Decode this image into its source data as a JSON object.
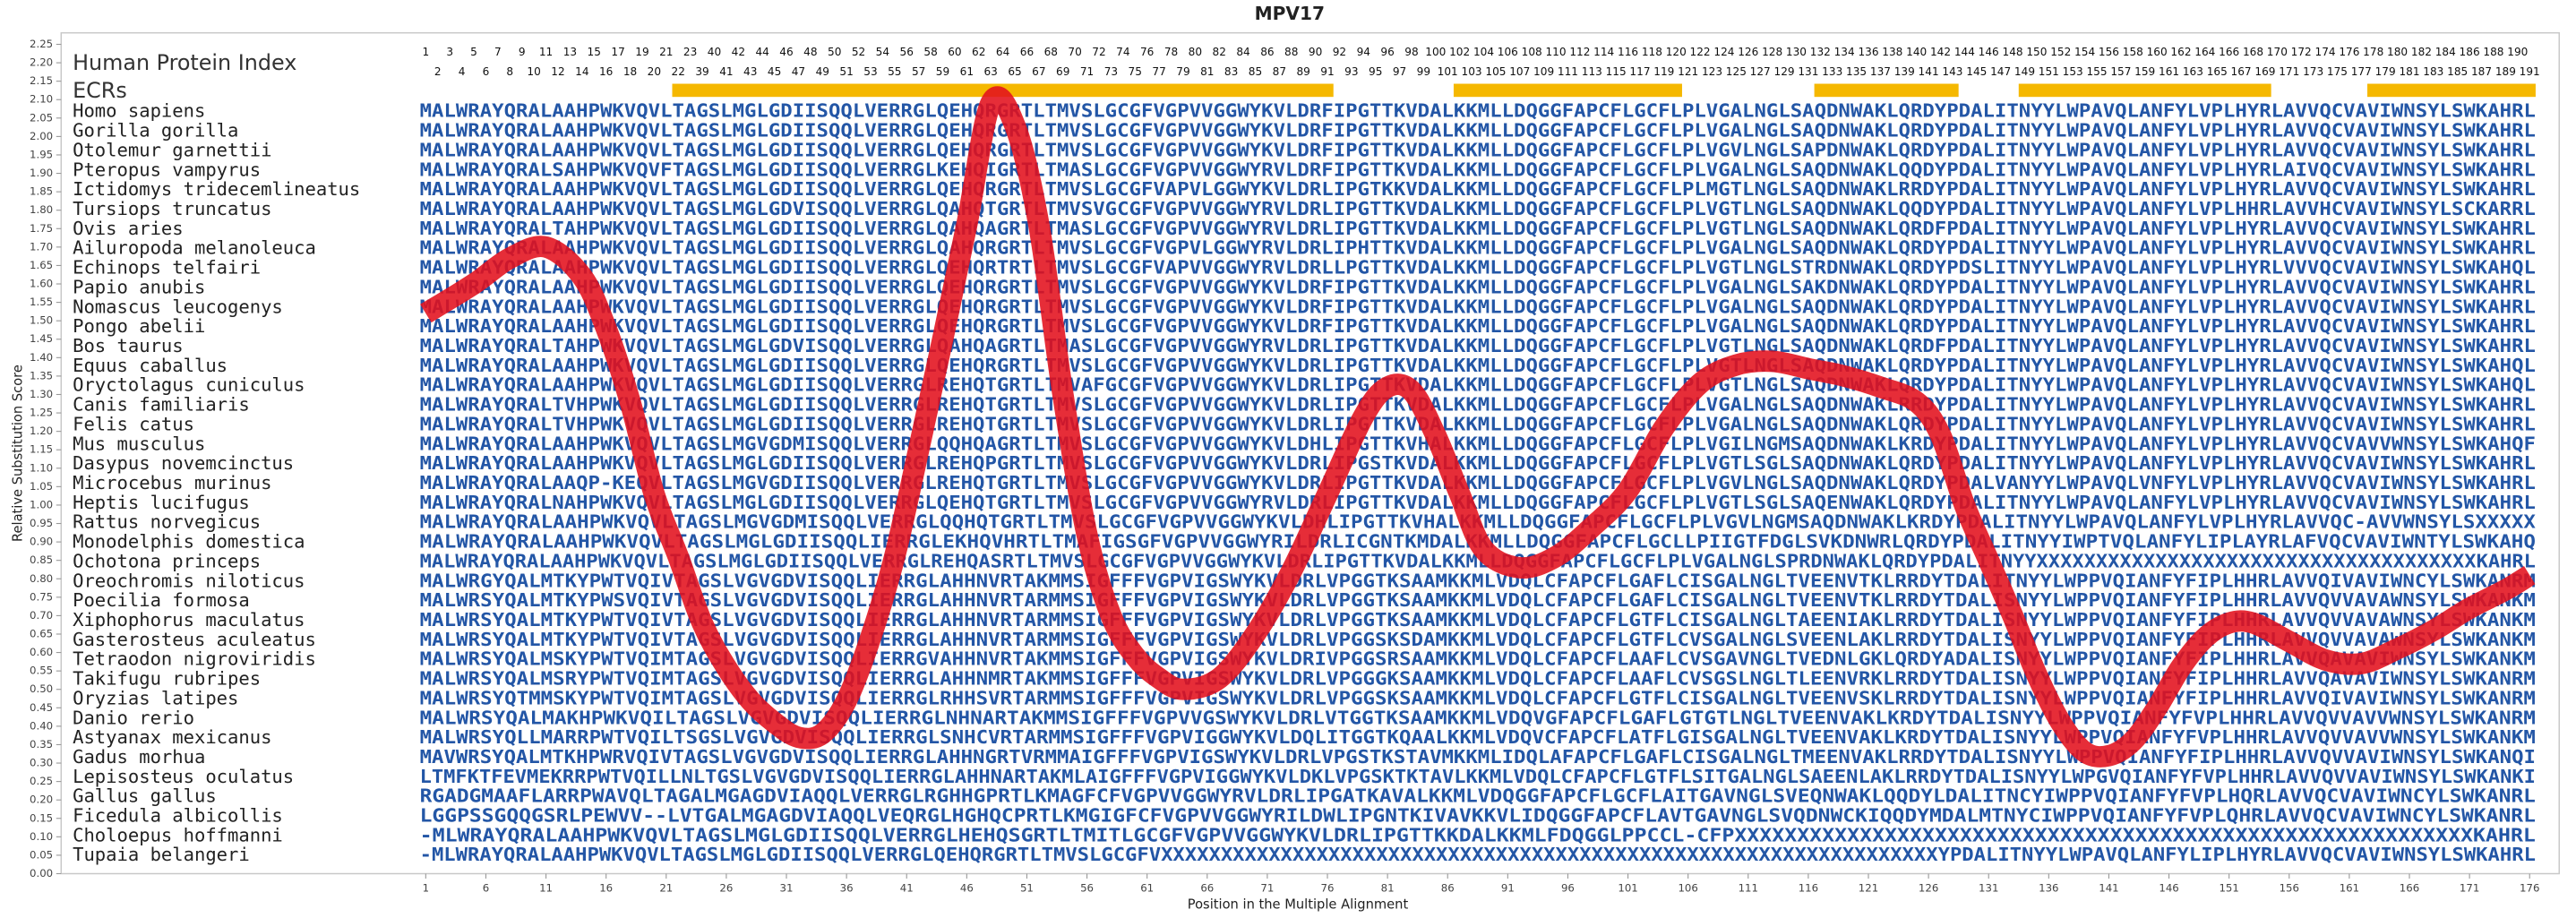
{
  "chart_data": {
    "type": "line",
    "title": "MPV17",
    "y_label": "Relative Substitution Score",
    "x_label": "Position in the Multiple Alignment",
    "index_label": "Human Protein Index",
    "ecr_label": "ECRs",
    "color": "#e3101c",
    "ecr_color": "#f5b800",
    "xlim": [
      1,
      176
    ],
    "ylim": [
      0,
      2.25
    ],
    "xticks": [
      1,
      6,
      11,
      16,
      21,
      26,
      31,
      36,
      41,
      46,
      51,
      56,
      61,
      66,
      71,
      76,
      81,
      86,
      91,
      96,
      101,
      106,
      111,
      116,
      121,
      126,
      131,
      136,
      141,
      146,
      151,
      156,
      161,
      166,
      171,
      176
    ],
    "yticks": [
      {
        "value": 0,
        "label": "0.00"
      },
      {
        "value": 0.05,
        "label": "0.05"
      },
      {
        "value": 0.1,
        "label": "0.10"
      },
      {
        "value": 0.15,
        "label": "0.15"
      },
      {
        "value": 0.2,
        "label": "0.20"
      },
      {
        "value": 0.25,
        "label": "0.25"
      },
      {
        "value": 0.3,
        "label": "0.30"
      },
      {
        "value": 0.35,
        "label": "0.35"
      },
      {
        "value": 0.4,
        "label": "0.40"
      },
      {
        "value": 0.45,
        "label": "0.45"
      },
      {
        "value": 0.5,
        "label": "0.50"
      },
      {
        "value": 0.55,
        "label": "0.55"
      },
      {
        "value": 0.6,
        "label": "0.60"
      },
      {
        "value": 0.65,
        "label": "0.65"
      },
      {
        "value": 0.7,
        "label": "0.70"
      },
      {
        "value": 0.75,
        "label": "0.75"
      },
      {
        "value": 0.8,
        "label": "0.80"
      },
      {
        "value": 0.85,
        "label": "0.85"
      },
      {
        "value": 0.9,
        "label": "0.90"
      },
      {
        "value": 0.95,
        "label": "0.95"
      },
      {
        "value": 1,
        "label": "1.00"
      },
      {
        "value": 1.05,
        "label": "1.05"
      },
      {
        "value": 1.1,
        "label": "1.10"
      },
      {
        "value": 1.15,
        "label": "1.15"
      },
      {
        "value": 1.2,
        "label": "1.20"
      },
      {
        "value": 1.25,
        "label": "1.25"
      },
      {
        "value": 1.3,
        "label": "1.30"
      },
      {
        "value": 1.35,
        "label": "1.35"
      },
      {
        "value": 1.4,
        "label": "1.40"
      },
      {
        "value": 1.45,
        "label": "1.45"
      },
      {
        "value": 1.5,
        "label": "1.50"
      },
      {
        "value": 1.55,
        "label": "1.55"
      },
      {
        "value": 1.6,
        "label": "1.60"
      },
      {
        "value": 1.65,
        "label": "1.65"
      },
      {
        "value": 1.7,
        "label": "1.70"
      },
      {
        "value": 1.75,
        "label": "1.75"
      },
      {
        "value": 1.8,
        "label": "1.80"
      },
      {
        "value": 1.85,
        "label": "1.85"
      },
      {
        "value": 1.9,
        "label": "1.90"
      },
      {
        "value": 1.95,
        "label": "1.95"
      },
      {
        "value": 2,
        "label": "2.00"
      },
      {
        "value": 2.05,
        "label": "2.05"
      },
      {
        "value": 2.1,
        "label": "2.10"
      },
      {
        "value": 2.15,
        "label": "2.15"
      },
      {
        "value": 2.2,
        "label": "2.20"
      },
      {
        "value": 2.25,
        "label": "2.25"
      }
    ],
    "x": [
      1,
      5,
      8,
      11,
      14,
      16,
      18,
      20,
      22,
      24,
      26,
      28,
      30,
      32,
      34,
      36,
      38,
      40,
      42,
      44,
      46,
      48,
      50,
      52,
      54,
      56,
      58,
      60,
      62,
      64,
      67,
      70,
      73,
      76,
      79,
      81,
      83,
      85,
      87,
      89,
      92,
      95,
      98,
      101,
      104,
      107,
      110,
      113,
      116,
      119,
      122,
      125,
      127,
      129,
      131,
      133,
      135,
      137,
      139,
      141,
      143,
      145,
      147,
      149,
      151,
      153,
      156,
      159,
      162,
      165,
      168,
      171,
      174,
      176
    ],
    "values": [
      1.52,
      1.6,
      1.67,
      1.7,
      1.62,
      1.48,
      1.28,
      1.03,
      0.86,
      0.68,
      0.56,
      0.47,
      0.41,
      0.37,
      0.38,
      0.47,
      0.64,
      0.86,
      1.15,
      1.45,
      1.76,
      2.09,
      2.03,
      1.76,
      1.3,
      0.92,
      0.7,
      0.59,
      0.53,
      0.5,
      0.53,
      0.65,
      0.82,
      1.03,
      1.24,
      1.32,
      1.31,
      1.19,
      1.03,
      0.88,
      0.83,
      0.86,
      0.94,
      1.04,
      1.21,
      1.33,
      1.38,
      1.39,
      1.37,
      1.35,
      1.32,
      1.28,
      1.19,
      1.0,
      0.85,
      0.7,
      0.54,
      0.41,
      0.33,
      0.32,
      0.36,
      0.45,
      0.56,
      0.64,
      0.68,
      0.68,
      0.63,
      0.58,
      0.57,
      0.61,
      0.66,
      0.72,
      0.77,
      0.81
    ],
    "ecrs": [
      [
        22,
        76
      ],
      [
        87,
        105
      ],
      [
        117,
        128
      ],
      [
        134,
        154
      ],
      [
        163,
        176
      ]
    ],
    "human_protein_index": [
      1,
      2,
      3,
      4,
      5,
      6,
      7,
      8,
      9,
      10,
      11,
      12,
      13,
      14,
      15,
      16,
      17,
      18,
      19,
      20,
      21,
      22,
      23,
      39,
      40,
      41,
      42,
      43,
      44,
      45,
      46,
      47,
      48,
      49,
      50,
      51,
      52,
      53,
      54,
      55,
      56,
      57,
      58,
      59,
      60,
      61,
      62,
      63,
      64,
      65,
      66,
      67,
      68,
      69,
      70,
      71,
      72,
      73,
      74,
      75,
      76,
      77,
      78,
      79,
      80,
      81,
      82,
      83,
      84,
      85,
      86,
      87,
      88,
      89,
      90,
      91,
      92,
      93,
      94,
      95,
      96,
      97,
      98,
      99,
      100,
      101,
      102,
      103,
      104,
      105,
      106,
      107,
      108,
      109,
      110,
      111,
      112,
      113,
      114,
      115,
      116,
      117,
      118,
      119,
      120,
      121,
      122,
      123,
      124,
      125,
      126,
      127,
      128,
      129,
      130,
      131,
      132,
      133,
      134,
      135,
      136,
      137,
      138,
      139,
      140,
      141,
      142,
      143,
      144,
      145,
      146,
      147,
      148,
      149,
      150,
      151,
      152,
      153,
      154,
      155,
      156,
      157,
      158,
      159,
      160,
      161,
      162,
      163,
      164,
      165,
      166,
      167,
      168,
      169,
      170,
      171,
      172,
      173,
      174,
      175,
      176,
      177,
      178,
      179,
      180,
      181,
      182,
      183,
      184,
      185,
      186,
      187,
      188,
      189,
      190,
      191
    ],
    "rows": [
      {
        "name": "Homo sapiens",
        "sequence": "MALWRAYQRALAAHPWKVQVLTAGSLMGLGDIISQQLVERRGLQEHQRGRTLTMVSLGCGFVGPVVGGWYKVLDRFIPGTTKVDALKKMLLDQGGFAPCFLGCFLPLVGALNGLSAQDNWAKLQRDYPDALITNYYLWPAVQLANFYLVPLHYRLAVVQCVAVIWNSYLSWKAHRL"
      },
      {
        "name": "Gorilla gorilla",
        "sequence": "MALWRAYQRALAAHPWKVQVLTAGSLMGLGDIISQQLVERRGLQEHQRGRTLTMVSLGCGFVGPVVGGWYKVLDRFIPGTTKVDALKKMLLDQGGFAPCFLGCFLPLVGALNGLSAQDNWAKLQRDYPDALITNYYLWPAVQLANFYLVPLHYRLAVVQCVAVIWNSYLSWKAHRL"
      },
      {
        "name": "Otolemur garnettii",
        "sequence": "MALWRAYQRALAAHPWKVQVLTAGSLMGLGDIISQQLVERRGLQEHQRGRTLTMVSLGCGFVGPVVGGWYKVLDRFIPGTTKVDALKKMLLDQGGFAPCFLGCFLPLVGVLNGLSAPDNWAKLQRDYPDALITNYYLWPAVQLANFYLVPLHYRLAVVQCVAVIWNSYLSWKAHRL"
      },
      {
        "name": "Pteropus vampyrus",
        "sequence": "MALWRAYQRALSAHPWKVQVFTAGSLMGLGDIISQQLVERRGLKEHQIGRTLTMASLGCGFVGPVVGGWYRVLDRFIPGTTKVDALKKMLLDQGGFAPCFLGCFLPLVGALNGLSAQDNWAKLQQDYPDALITNYYLWPAVQLANFYLVPLHYRLAIVQCVAVIWNSYLSWKAHRL"
      },
      {
        "name": "Ictidomys tridecemlineatus",
        "sequence": "MALWRAYQRALAAHPWKVQVLTAGSLMGLGDIISQQLVERRGLQEHQRGRTLTMVSLGCGFVAPVLGGWYKVLDRLIPGTKKVDALKKMLLDQGGFAPCFLGCFLPLMGTLNGLSAQDNWAKLRRDYPDALITNYYLWPAVQLANFYLVPLHYRLAVVQCVAVIWNSYLSWKAHRL"
      },
      {
        "name": "Tursiops truncatus",
        "sequence": "MALWRAYQRALAAHPWKVQVLTAGSLMGLGDVISQQLVERRGLQAHQTGRTLTMVSVGCGFVGPVVGGWYRVLDRLIPGTTKVDALKKMLLDQGGFAPCFLGCFLPLVGTLNGLSAQDNWAKLQQDYPDALITNYYLWPAVQLANFYLVPLHHRLAVVHCVAVIWNSYLSCKARRL"
      },
      {
        "name": "Ovis aries",
        "sequence": "MALWRAYQRALTAHPWKVQVLTAGSLMGLGDIISQQLVERRGLQAHQAGRTLTMASLGCGFVGPVVGGWYRVLDRLIPGTTKVDALKKMLLDQGGFAPCFLGCFLPLVGTLNGLSAQDNWAKLQRDFPDALITNYYLWPAVQLANFYLVPLHYRLAVVQCVAVIWNSYLSWKAHRL"
      },
      {
        "name": "Ailuropoda melanoleuca",
        "sequence": "MALWRAYQRALAAHPWKVQVLTAGSLMGLGDIISQQLVERRGLQAHQRGRTLTMVSLGCGFVGPVLGGWYRVLDRLIPHTTKVDALKKMLLDQGGFAPCFLGCFLPLVGALNGLSAQDNWAKLQRDYPDALITNYYLWPAVQLANFYLVPLHYRLAVVQCVAVIWNSYLSWKAHRL"
      },
      {
        "name": "Echinops telfairi",
        "sequence": "MALWRAYQRALAAHPWKVQVLTAGSLMGLGDIISQQLVERRGLQEHQRTRTLTMVSLGCGFVAPVVGGWYRVLDRLLPGTTKVDALKKMLLDQGGFAPCFLGCFLPLVGTLNGLSTRDNWAKLQRDYPDSLITNYYLWPAVQLANFYLVPLHYRLVVVQCVAVIWNSYLSWKAHQL"
      },
      {
        "name": "Papio anubis",
        "sequence": "MALWRAYQRALAAHPWKVQVLTAGSLMGLGDIISQQLVERRGLQEHQRGRTLTMVSLGCGFVGPVVGGWYKVLDRFIPGTTKVDALKKMLLDQGGFAPCFLGCFLPLVGALNGLSAKDNWAKLQRDYPDALITNYYLWPAVQLANFYLVPLHYRLAVVQCVAVIWNSYLSWKAHRL"
      },
      {
        "name": "Nomascus leucogenys",
        "sequence": "MALWRAYQRALAAHPWKVQVLTAGSLMGLGDIISQQLVERRGLQEHQRGRTLTMVSLGCGFVGPVVGGWYKVLDRFIPGTTKVDALKKMLLDQGGFAPCFLGCFLPLVGALNGLSAQDNWAKLQRDYPDALITNYYLWPAVQLANFYLVPLHYRLAVVQCVAVIWNSYLSWKAHRL"
      },
      {
        "name": "Pongo abelii",
        "sequence": "MALWRAYQRALAAHPWKVQVLTAGSLMGLGDIISQQLVERRGLQEHQRGRTLTMVSLGCGFVGPVVGGWYKVLDRFIPGTTKVDALKKMLLDQGGFAPCFLGCFLPLVGALNGLSAQDNWAKLQRDYPDALITNYYLWPAVQLANFYLVPLHYRLAVVQCVAVIWNSYLSWKAHRL"
      },
      {
        "name": "Bos taurus",
        "sequence": "MALWRAYQRALTAHPWKVQVLTAGSLMGLGDVISQQLVERRGLQAHQAGRTLTMASLGCGFVGPVVGGWYRVLDRLIPGTTKVDALKKMLLDQGGFAPCFLGCFLPLVGTLNGLSAQDNWAKLQRDFPDALITNYYLWPAVQLANFYLVPLHYRLAVVQCVAVIWNSYLSWKAHRL"
      },
      {
        "name": "Equus caballus",
        "sequence": "MALWRAYQRALAAHPWKVQVLTAGSLMGLGDIISQQLVERRGLQEHQRGRTLTMVSLGCGFVGPVVGGWYKVLDRLIPGTTKVDALKKMLLDQGGFAPCFLGCFLPLVGTLNGLSAQDNWAKLQRDYPDALITNYYLWPAVQLANFYLVPLHYRLAVVQCVAVIWNSYLSWKAHQL"
      },
      {
        "name": "Oryctolagus cuniculus",
        "sequence": "MALWRAYQRALAAHPWKVQVLTAGSLMGLGDIISQQLVERRGLREHQTGRTLTMVAFGCGFVGPVVGGWYKVLDRLIPGTTKVDALKKMLLDQGGFAPCFLGCFLPLVGTLNGLSAQDNWAKLQRDYPDALITNYYLWPAVQLANFYLVPLHYRLAVVQCVAVIWNSYLSWKAHQL"
      },
      {
        "name": "Canis familiaris",
        "sequence": "MALWRAYQRALTVHPWKVQVLTAGSLMGLGDIISQQLVERRGLREHQTGRTLTMVSLGCGFVGPVVGGWYKVLDRLIPGTTKVDALKKMLLDQGGFAPCFLGCFLPLVGALNGLSAQDNWAKLRRDYPDALITNYYLWPAVQLANFYLVPLHYRLAVVQCVAVIWNSYLSWKAHRL"
      },
      {
        "name": "Felis catus",
        "sequence": "MALWRAYQRALTVHPWKVQVLTAGSLMGLGDIISQQLVERRGLREHQTGRTLTMVSLGCGFVGPVVGGWYKVLDRLIPGTTKVDALKKMLLDQGGFAPCFLGCFLPLVGALNGLSAQDNWAKLQRDYPDALITNYYLWPAVQLANFYLVPLHYRLAVVQCVAVIWNSYLSWKAHRL"
      },
      {
        "name": "Mus musculus",
        "sequence": "MALWRAYQRALAAHPWKVQVLTAGSLMGVGDMISQQLVERRGLQQHQAGRTLTMVSLGCGFVGPVVGGWYKVLDHLIPGTTKVHALKKMLLDQGGFAPCFLGCFLPLVGILNGMSAQDNWAKLKRDYPDALITNYYLWPAVQLANFYLVPLHYRLAVVQCVAVVWNSYLSWKAHQF"
      },
      {
        "name": "Dasypus novemcinctus",
        "sequence": "MALWRAYQRALAAHPWKVQVLTAGSLMGLGDIISQQLVERRGLREHQPGRTLTMVSLGCGFVGPVVGGWYKVLDRLIPGSTKVDALKKMLLDQGGFAPCFLGCFLPLVGTLSGLSAQDNWAKLQRDYPDALITNYYLWPAVQLANFYLVPLHYRLAVVQCVAVIWNSYLSWKAHRL"
      },
      {
        "name": "Microcebus murinus",
        "sequence": "MALWRAYQRALAAQP-KEQVLTAGSLMGVGDIISQQLVERRGLREHQTGRTLTMVSLGCGFVGPVVGGWYKVLDRLIPGTTKVDALKKMLLDQGGFAPCFLGCFLPLVGVLNGLSAQDNWAKLQRDYPDALVANYYLWPAVQLVNFYLVPLHYRLAVVQCVAVIWNSYLSWKAHRL"
      },
      {
        "name": "Heptis lucifugus",
        "sequence": "MALWRAYQRALNAHPWKVQVLTAGSLMGLGDIISQQLVERRGLQEHQTGRTLTMVSLGCGFVGPVVGGWYRVLDRLIPGTTKVDALKKMLLDQGGFAPCFLGCFLPLVGTLSGLSAQENWAKLQRDYPDALITNYYLWPAVQLANFYLVPLHYRLAVVQCVAVIWNSYLSWKAHRL"
      },
      {
        "name": "Rattus norvegicus",
        "sequence": "MALWRAYQRALAAHPWKVQVLTAGSLMGVGDMISQQLVERRGLQQHQTGRTLTMVSLGCGFVGPVVGGWYKVLDHLIPGTTKVHALKKMLLDQGGFAPCFLGCFLPLVGVLNGMSAQDNWAKLKRDYPDALITNYYLWPAVQLANFYLVPLHYRLAVVQC-AVVWNSYLSXXXXX"
      },
      {
        "name": "Monodelphis domestica",
        "sequence": "MALWRAYQRALAAHPWKVQVLTAGSLMGLGDIISQQLIERRGLEKHQVHRTLTMAFIGSGFVGPVVGGWYRILDRLICGNTKMDALKKMLLDQGGFAPCFLGCLLPIIGTFDGLSVKDNWRLQRDYPDALITNYYIWPTVQLANFYLIPLAYRLAFVQCVAVIWNTYLSWKAHQ"
      },
      {
        "name": "Ochotona princeps",
        "sequence": "MALWRAYQRALAAHPWKVQVLTAGSLMGLGDIISQQLVERRGLREHQASRTLTMVSLGCGFVGPVVGGWYKVLDRLIPGTTKVDALKKMLLDQGGFAPCFLGCFLPLVGALNGLSPRDNWAKLQRDYPDALITNYYXXXXXXXXXXXXXXXXXXXXXXXXXXXXXXXXXXXXXKAHRL"
      },
      {
        "name": "Oreochromis niloticus",
        "sequence": "MALWRGYQALMTKYPWTVQIVTAGSLVGVGDVISQQLIERRGLAHHNVRTAKMMSIGFFFVGPVIGSWYKVLDRLVPGGTKSAAMKKMLVDQLCFAPCFLGAFLCISGALNGLTVEENVTKLRRDYTDALITNYYLWPPVQIANFYFIPLHHRLAVVQIVAVIWNCYLSWKANRM"
      },
      {
        "name": "Poecilia formosa",
        "sequence": "MALWRSYQALMTKYPWSVQIVTAGSLVGVGDVISQQLIERRGLAHHNVRTARMMSIGFFFVGPVIGSWYKVLDRLVPGGTKSAAMKKMLVDQLCFAPCFLGAFLCISGALNGLTVEENVTKLRRDYTDALISNYYLWPPVQIANFYFIPLHHRLAVVQVVAVAWNSYLSWKANKM"
      },
      {
        "name": "Xiphophorus maculatus",
        "sequence": "MALWRSYQALMTKYPWTVQIVTAGSLVGVGDVISQQLIERRGLAHHNVRTARMMSIGFFFVGPVIGSWYKVLDRLVPGGTKSAAMKKMLVDQLCFAPCFLGTFLCISGALNGLTAEENIAKLRRDYTDALISNYYLWPPVQIANFYFIPLHHRLAVVQVVAVAWNSYLSWKANKM"
      },
      {
        "name": "Gasterosteus aculeatus",
        "sequence": "MALWRSYQALMTKYPWTVQIVTAGSLVGVGDVISQQLIERRGLAHHNVRTARMMSIGFFFVGPVIGSWYKVLDRLVPGGSKSDAMKKMLVDQLCFAPCFLGTFLCVSGALNGLSVEENLAKLRRDYTDALISNYYLWPPVQIANFYFIPLHHRLAVVQVVAVAWNSYLSWKANKM"
      },
      {
        "name": "Tetraodon nigroviridis",
        "sequence": "MALWRSYQALMSKYPWTVQIMTAGSLVGVGDVISQQLIERRGVAHHNVRTAKMMSIGFFFVGPVIGSWYKVLDRIVPGGSRSAAMKKMLVDQLCFAPCFLAAFLCVSGAVNGLTVEDNLGKLQRDYADALISNYYLWPPVQIANFYFIPLHHRLAVVQAVAVIWNSYLSWKANKM"
      },
      {
        "name": "Takifugu rubripes",
        "sequence": "MALWRSYQALMSRYPWTVQIMTAGSLVGVGDVISQQLIERRGLAHHNMRTAKMMSIGFFFVGPVIGSWYKVLDRLVPGGGKSAAMKKMLVDQLCFAPCFLAAFLCVSGSLNGLTLEENVRKLRRDYTDALISNYYLWPPVQIANFYFIPLHHRLAVVQAVAVIWNSYLSWKANRM"
      },
      {
        "name": "Oryzias latipes",
        "sequence": "MALWRSYQTMMSKYPWTVQIMTAGSLVGVGDVISQQLIERRGLRHHSVRTARMMSIGFFFVGPVIGSWYKVLDRLVPGGSKSAAMKKMLVDQLCFAPCFLGTFLCISGALNGLTVEENVSKLRRDYTDALISNYYLWPPVQIANFYFIPLHHRLAVVQIVAVIWNSYLSWKANRM"
      },
      {
        "name": "Danio rerio",
        "sequence": "MALWRSYQALMAKHPWKVQILTAGSLVGVGDVISQQLIERRGLNHNARTAKMMSIGFFFVGPVVGSWYKVLDRLVTGGTKSAAMKKMLVDQVGFAPCFLGAFLGTGTLNGLTVEENVAKLKRDYTDALISNYYLWPPVQIANFYFVPLHHRLAVVQVVAVVWNSYLSWKANRM"
      },
      {
        "name": "Astyanax mexicanus",
        "sequence": "MALWRSYQLLMARRPWTVQILTSGSLVGVGDVISQQLIERRGLSNHCVRTARMMSIGFFFVGPVIGGWYKVLDQLITGGTKQAALKKMLVDQVCFAPCFLATFLGISGALNGLTVEENVAKLKRDYTDALISNYYLWPPVQIANFYFVPLHHRLAVVQVVAVVWNSYLSWKANKM"
      },
      {
        "name": "Gadus morhua",
        "sequence": "MAVWRSYQALMTKHPWRVQIVTAGSLVGVGDVISQQLIERRGLAHHNGRTVRMMAIGFFFVGPVIGSWYKVLDRLVPGSTKSTAVMKKMLIDQLAFAPCFLGAFLCISGALNGLTMEENVAKLRRDYTDALISNYYLWPPVQIANFYFIPLHHRLAVVQVVAVIWNSYLSWKANQI"
      },
      {
        "name": "Lepisosteus oculatus",
        "sequence": "LTMFKTFEVMEKRRPWTVQILLNLTGSLVGVGDVISQQLIERRGLAHHNARTAKMLAIGFFFVGPVIGGWYKVLDKLVPGSKTKTAVLKKMLVDQLCFAPCFLGTFLSITGALNGLSAEENLAKLRRDYTDALISNYYLWPGVQIANFYFVPLHHRLAVVQVVAVIWNSYLSWKANKI"
      },
      {
        "name": "Gallus gallus",
        "sequence": "RGADGMAAFLARRPWAVQLTAGALMGAGDVIAQQLVERRGLRGHHGPRTLKMAGFCFVGPVVGGWYRVLDRLIPGATKAVALKKMLVDQGGFAPCFLGCFLAITGAVNGLSVEQNWAKLQQDYLDALITNCYIWPPVQIANFYFVPLHQRLAVVQCVAVIWNCYLSWKANRL"
      },
      {
        "name": "Ficedula albicollis",
        "sequence": "LGGPSSGQQGSRLPEWVV--LVTGALMGAGDVIAQQLVEQRGLHGHQCPRTLKMGIGFCFVGPVVGGWYRILDWLIPGNTKIVAVKKVLIDQGGFAPCFLAVTGAVNGLSVQDNWCKIQQDYMDALMTNYCIWPPVQIANFYFVPLQHRLAVVQCVAVIWNCYLSWKANRL"
      },
      {
        "name": "Choloepus hoffmanni",
        "sequence": "-MLWRAYQRALAAHPWKVQVLTAGSLMGLGDIISQQLVERRGLHEHQSGRTLTMITLGCGFVGPVVGGWYKVLDRLIPGTTKKDALKKMLFDQGGLPPCCL-CFPXXXXXXXXXXXXXXXXXXXXXXXXXXXXXXXXXXXXXXXXXXXXXXXXXXXXXXXXXXXKAHRL"
      },
      {
        "name": "Tupaia belangeri",
        "sequence": "-MLWRAYQRALAAHPWKVQVLTAGSLMGLGDIISQQLVERRGLQEHQRGRTLTMVSLGCGFVXXXXXXXXXXXXXXXXXXXXXXXXXXXXXXXXXXXXXXXXXXXXXXXXXXXXXXXXXXXXXXXXXYPDALITNYYLWPAVQLANFYLIPLHYRLAVVQCVAVIWNSYLSWKAHRL"
      }
    ]
  }
}
